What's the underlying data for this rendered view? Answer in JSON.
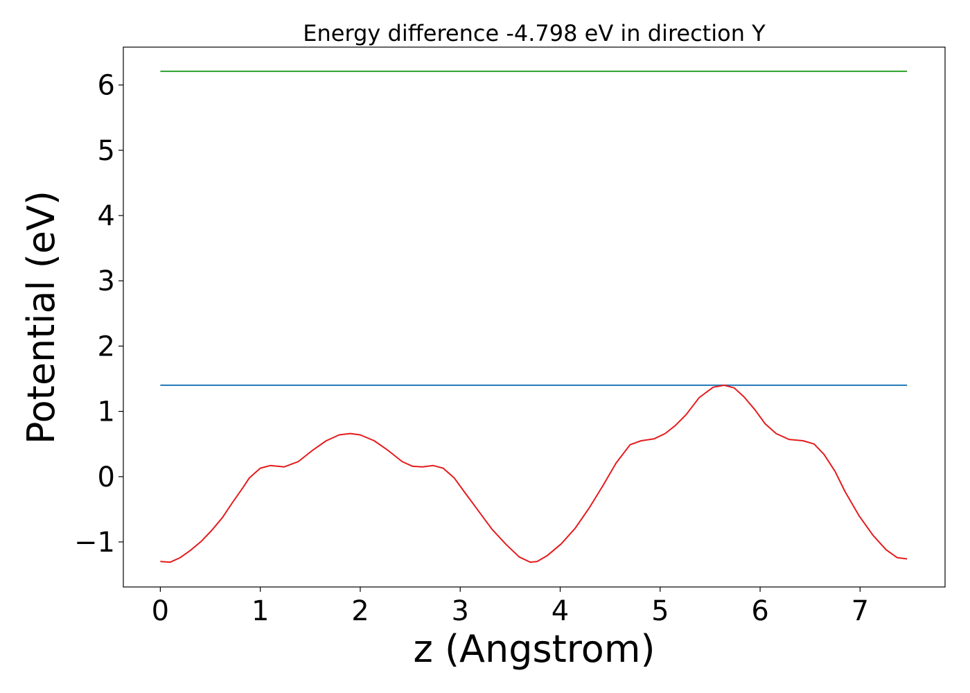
{
  "chart_data": {
    "type": "line",
    "title": "Energy difference -4.798 eV in direction Y",
    "xlabel": "z (Angstrom)",
    "ylabel": "Potential (eV)",
    "xlim": [
      -0.37,
      7.85
    ],
    "ylim": [
      -1.69,
      6.58
    ],
    "xticks": [
      0,
      1,
      2,
      3,
      4,
      5,
      6,
      7
    ],
    "xtick_labels": [
      "0",
      "1",
      "2",
      "3",
      "4",
      "5",
      "6",
      "7"
    ],
    "yticks": [
      -1,
      0,
      1,
      2,
      3,
      4,
      5,
      6
    ],
    "ytick_labels": [
      "−1",
      "0",
      "1",
      "2",
      "3",
      "4",
      "5",
      "6"
    ],
    "grid": false,
    "series": [
      {
        "color": "#2ca02c",
        "x": [
          0,
          7.47
        ],
        "y": [
          6.21,
          6.21
        ]
      },
      {
        "color": "#1f77b4",
        "x": [
          0,
          7.47
        ],
        "y": [
          1.4,
          1.4
        ]
      },
      {
        "color": "#e41a1c",
        "x": [
          0,
          0.1,
          0.2,
          0.3,
          0.41,
          0.51,
          0.62,
          0.72,
          0.83,
          0.89,
          1.0,
          1.1,
          1.24,
          1.38,
          1.52,
          1.66,
          1.79,
          1.9,
          2.0,
          2.14,
          2.28,
          2.42,
          2.52,
          2.62,
          2.73,
          2.83,
          2.94,
          3.04,
          3.18,
          3.32,
          3.46,
          3.59,
          3.7,
          3.77,
          3.87,
          4.01,
          4.15,
          4.29,
          4.43,
          4.56,
          4.7,
          4.81,
          4.94,
          5.05,
          5.15,
          5.26,
          5.39,
          5.53,
          5.64,
          5.74,
          5.84,
          5.95,
          6.05,
          6.16,
          6.29,
          6.43,
          6.54,
          6.64,
          6.75,
          6.85,
          6.99,
          7.13,
          7.26,
          7.37,
          7.47
        ],
        "y": [
          -1.3,
          -1.31,
          -1.24,
          -1.13,
          -0.99,
          -0.83,
          -0.63,
          -0.4,
          -0.16,
          -0.02,
          0.13,
          0.17,
          0.15,
          0.23,
          0.4,
          0.55,
          0.64,
          0.66,
          0.64,
          0.55,
          0.4,
          0.23,
          0.16,
          0.15,
          0.17,
          0.13,
          -0.02,
          -0.23,
          -0.52,
          -0.81,
          -1.04,
          -1.23,
          -1.31,
          -1.3,
          -1.21,
          -1.03,
          -0.79,
          -0.48,
          -0.13,
          0.21,
          0.49,
          0.55,
          0.58,
          0.66,
          0.78,
          0.95,
          1.21,
          1.37,
          1.4,
          1.36,
          1.22,
          1.02,
          0.81,
          0.66,
          0.57,
          0.55,
          0.5,
          0.34,
          0.08,
          -0.23,
          -0.6,
          -0.9,
          -1.12,
          -1.24,
          -1.26
        ]
      }
    ]
  }
}
